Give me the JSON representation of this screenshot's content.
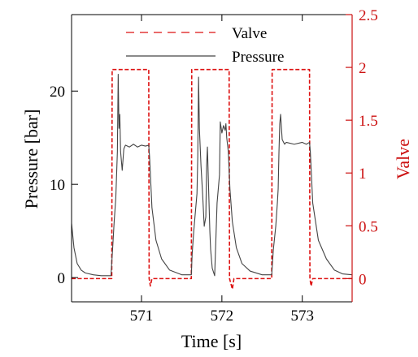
{
  "chart_data": {
    "type": "line",
    "title": "",
    "xlabel": "Time [s]",
    "ylabel_left": "Pressure [bar]",
    "ylabel_right": "Valve",
    "xlim": [
      570.13,
      573.62
    ],
    "ylim_left": [
      -2.6,
      28.2
    ],
    "ylim_right": [
      -0.22,
      2.5
    ],
    "grid": false,
    "legend_position": "top",
    "x_ticks": [
      571,
      572,
      573
    ],
    "x_tick_labels": [
      "571",
      "572",
      "573"
    ],
    "y_left_ticks": [
      0,
      10,
      20
    ],
    "y_left_tick_labels": [
      "0",
      "10",
      "20"
    ],
    "y_right_ticks": [
      0,
      0.5,
      1,
      1.5,
      2,
      2.5
    ],
    "y_right_tick_labels": [
      "0",
      "0.5",
      "1",
      "1.5",
      "2",
      "2.5"
    ],
    "colors": {
      "valve": "#dd1111",
      "pressure": "#444444",
      "axis_right": "#cc1111",
      "axis_left": "#000000"
    },
    "series": [
      {
        "name": "Valve",
        "axis": "right",
        "style": "dashed",
        "x": [
          570.13,
          570.63,
          570.635,
          571.09,
          571.095,
          571.11,
          571.13,
          571.62,
          571.625,
          572.09,
          572.095,
          572.13,
          572.15,
          572.62,
          572.625,
          573.09,
          573.095,
          573.11,
          573.13,
          573.62
        ],
        "y": [
          0,
          0,
          1.98,
          1.98,
          0,
          -0.07,
          0,
          0,
          1.98,
          1.98,
          0,
          -0.1,
          0,
          0,
          1.98,
          1.98,
          0,
          -0.07,
          0,
          0
        ]
      },
      {
        "name": "Pressure",
        "axis": "left",
        "style": "solid",
        "x": [
          570.13,
          570.16,
          570.2,
          570.25,
          570.3,
          570.4,
          570.5,
          570.62,
          570.64,
          570.66,
          570.68,
          570.7,
          570.71,
          570.72,
          570.73,
          570.74,
          570.76,
          570.78,
          570.8,
          570.85,
          570.9,
          570.95,
          571.0,
          571.05,
          571.09,
          571.1,
          571.13,
          571.18,
          571.25,
          571.35,
          571.5,
          571.62,
          571.63,
          571.65,
          571.67,
          571.69,
          571.7,
          571.71,
          571.72,
          571.74,
          571.76,
          571.78,
          571.8,
          571.81,
          571.82,
          571.84,
          571.85,
          571.86,
          571.88,
          571.91,
          571.94,
          571.97,
          571.98,
          572.0,
          572.02,
          572.04,
          572.05,
          572.06,
          572.08,
          572.1,
          572.13,
          572.18,
          572.25,
          572.35,
          572.5,
          572.62,
          572.64,
          572.67,
          572.69,
          572.7,
          572.71,
          572.72,
          572.73,
          572.75,
          572.78,
          572.8,
          572.9,
          573.0,
          573.05,
          573.09,
          573.1,
          573.13,
          573.2,
          573.3,
          573.4,
          573.5,
          573.62
        ],
        "y": [
          5.8,
          3.2,
          1.5,
          0.8,
          0.5,
          0.3,
          0.2,
          0.2,
          3.0,
          6.0,
          8.5,
          13.5,
          21.8,
          16.0,
          17.5,
          13.5,
          11.5,
          13.8,
          14.2,
          14.0,
          14.3,
          14.0,
          14.2,
          14.1,
          14.2,
          13.0,
          7.5,
          4.0,
          2.0,
          0.8,
          0.3,
          0.3,
          2.5,
          5.0,
          7.0,
          9.0,
          13.0,
          21.5,
          16.0,
          12.0,
          9.0,
          5.5,
          6.5,
          12.0,
          14.0,
          8.0,
          5.0,
          3.0,
          1.0,
          0.2,
          8.0,
          11.0,
          16.7,
          15.5,
          16.3,
          15.8,
          16.5,
          15.0,
          13.5,
          9.5,
          6.0,
          3.2,
          1.5,
          0.7,
          0.3,
          0.3,
          3.0,
          5.5,
          8.0,
          9.5,
          13.5,
          16.5,
          17.5,
          14.8,
          14.3,
          14.5,
          14.3,
          14.5,
          14.3,
          14.5,
          13.5,
          8.0,
          4.0,
          2.0,
          0.8,
          0.4,
          0.3
        ]
      }
    ]
  }
}
